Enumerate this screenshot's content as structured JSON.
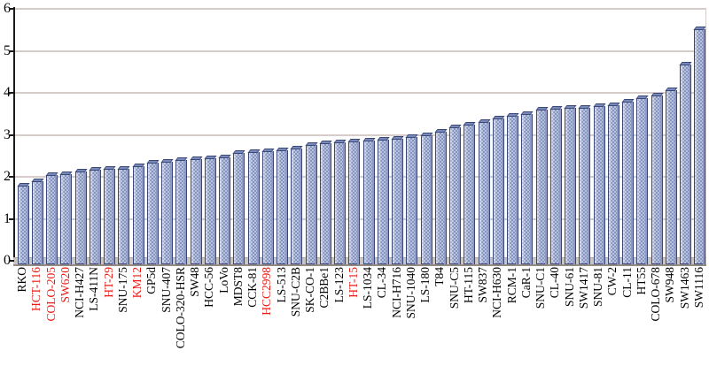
{
  "chart_data": {
    "type": "bar",
    "title": "",
    "xlabel": "",
    "ylabel": "",
    "ylim": [
      0,
      6
    ],
    "yticks": [
      0,
      1,
      2,
      3,
      4,
      5,
      6
    ],
    "grid": true,
    "legend": "none",
    "sorted": "ascending",
    "bar_fill_color": "#bac3de",
    "bar_pattern_dot_color": "#7e8ebc",
    "bar_edge_color": "#3a4878",
    "gridline_color": "#d6cdca",
    "floor_color": "#cbc4bf",
    "label_color_default": "#000000",
    "label_color_highlight": "#e81b14",
    "categories": [
      "RKO",
      "HCT-116",
      "COLO-205",
      "SW620",
      "NCI-H427",
      "LS-411N",
      "HT-29",
      "SNU-175",
      "KM12",
      "GP5d",
      "SNU-407",
      "COLO-320-HSR",
      "SW48",
      "HCC-56",
      "LoVo",
      "MDST8",
      "CCK-81",
      "HCC2998",
      "LS-513",
      "SNU-C2B",
      "SK-CO-1",
      "C2BBe1",
      "LS-123",
      "HT-15",
      "LS-1034",
      "CL-34",
      "NCI-H716",
      "SNU-1040",
      "LS-180",
      "T84",
      "SNU-C5",
      "HT-115",
      "SW837",
      "NCI-H630",
      "RCM-1",
      "CaR-1",
      "SNU-C1",
      "CL-40",
      "SNU-61",
      "SW1417",
      "SNU-81",
      "CW-2",
      "CL-11",
      "HT55",
      "COLO-678",
      "SW948",
      "SW1463",
      "SW1116"
    ],
    "values": [
      1.78,
      1.9,
      2.04,
      2.06,
      2.13,
      2.16,
      2.18,
      2.19,
      2.26,
      2.33,
      2.35,
      2.4,
      2.42,
      2.45,
      2.47,
      2.56,
      2.58,
      2.61,
      2.64,
      2.68,
      2.76,
      2.8,
      2.82,
      2.84,
      2.86,
      2.88,
      2.91,
      2.95,
      2.99,
      3.08,
      3.18,
      3.24,
      3.31,
      3.4,
      3.46,
      3.49,
      3.6,
      3.62,
      3.64,
      3.65,
      3.69,
      3.71,
      3.8,
      3.87,
      3.94,
      4.06,
      4.68,
      5.52
    ],
    "highlighted_categories": [
      "HCT-116",
      "COLO-205",
      "SW620",
      "HT-29",
      "KM12",
      "HCC2998",
      "HT-15"
    ]
  }
}
